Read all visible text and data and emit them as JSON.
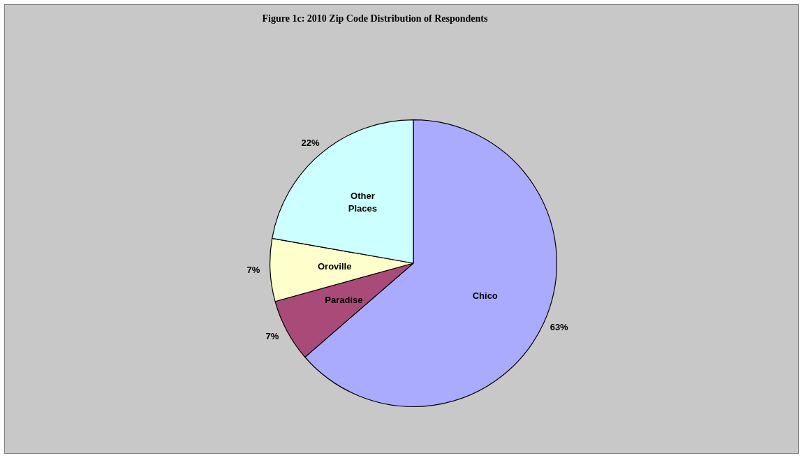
{
  "chart_data": {
    "type": "pie",
    "title": "Figure 1c:  2010 Zip Code Distribution of Respondents",
    "categories": [
      "Chico",
      "Paradise",
      "Oroville",
      "Other Places"
    ],
    "values": [
      63,
      7,
      7,
      22
    ],
    "value_labels": [
      "63%",
      "7%",
      "7%",
      "22%"
    ],
    "colors": [
      "#aaaaff",
      "#a94a78",
      "#ffffcc",
      "#ccffff"
    ],
    "legend": false
  }
}
